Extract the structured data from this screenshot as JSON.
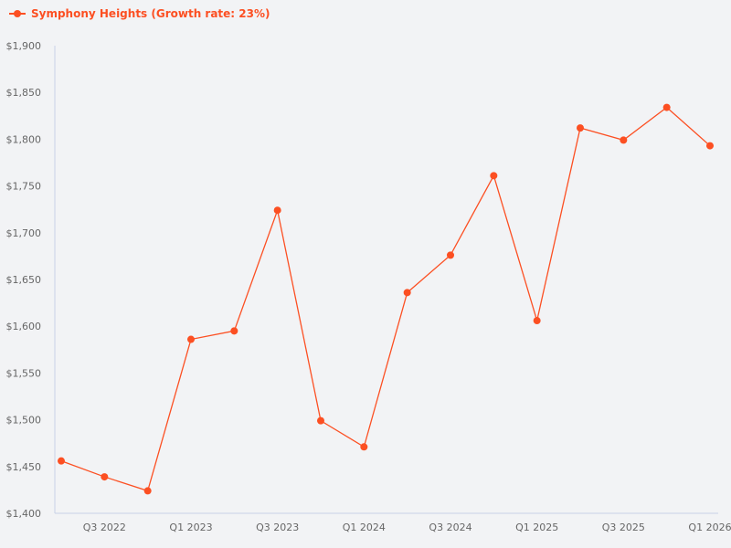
{
  "legend": {
    "label": "Symphony Heights (Growth rate: 23%)",
    "color": "#fc4f22"
  },
  "chart_data": {
    "type": "line",
    "title": "",
    "xlabel": "",
    "ylabel": "",
    "ylim": [
      1400,
      1900
    ],
    "grid": false,
    "legend_position": "top-left",
    "y_ticks": [
      "$1,400",
      "$1,450",
      "$1,500",
      "$1,550",
      "$1,600",
      "$1,650",
      "$1,700",
      "$1,750",
      "$1,800",
      "$1,850",
      "$1,900"
    ],
    "x_tick_labels": [
      "Q3 2022",
      "Q1 2023",
      "Q3 2023",
      "Q1 2024",
      "Q3 2024",
      "Q1 2025",
      "Q3 2025",
      "Q1 2026"
    ],
    "categories": [
      "Q2 2022",
      "Q3 2022",
      "Q4 2022",
      "Q1 2023",
      "Q2 2023",
      "Q3 2023",
      "Q4 2023",
      "Q1 2024",
      "Q2 2024",
      "Q3 2024",
      "Q4 2024",
      "Q1 2025",
      "Q2 2025",
      "Q3 2025",
      "Q4 2025",
      "Q1 2026"
    ],
    "series": [
      {
        "name": "Symphony Heights (Growth rate: 23%)",
        "color": "#fc4f22",
        "values": [
          1456,
          1439,
          1424,
          1586,
          1595,
          1724,
          1499,
          1471,
          1636,
          1676,
          1761,
          1606,
          1812,
          1799,
          1834,
          1793
        ]
      }
    ]
  }
}
